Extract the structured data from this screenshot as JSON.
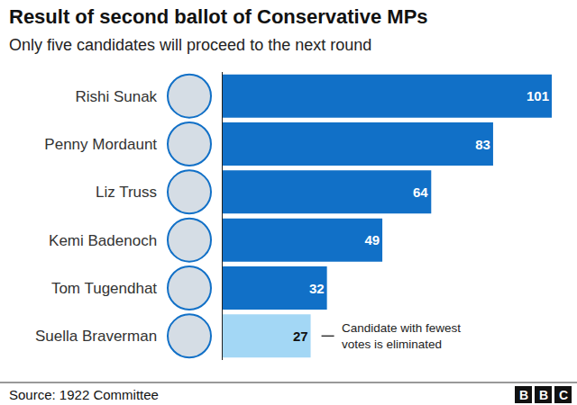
{
  "chart_data": {
    "type": "bar",
    "orientation": "horizontal",
    "title": "Result of second ballot of Conservative MPs",
    "subtitle": "Only five candidates will proceed to the next round",
    "categories": [
      "Rishi Sunak",
      "Penny Mordaunt",
      "Liz Truss",
      "Kemi Badenoch",
      "Tom Tugendhat",
      "Suella Braverman"
    ],
    "values": [
      101,
      83,
      64,
      49,
      32,
      27
    ],
    "colors": [
      "#1170c7",
      "#1170c7",
      "#1170c7",
      "#1170c7",
      "#1170c7",
      "#a3d7f5"
    ],
    "xlim": [
      0,
      101
    ],
    "data_labels": true,
    "tick_labels": "y",
    "grid": false,
    "annotations": [
      {
        "category": "Suella Braverman",
        "text": "Candidate with fewest votes is eliminated"
      }
    ],
    "source": "Source: 1922 Committee",
    "logo": "BBC"
  }
}
